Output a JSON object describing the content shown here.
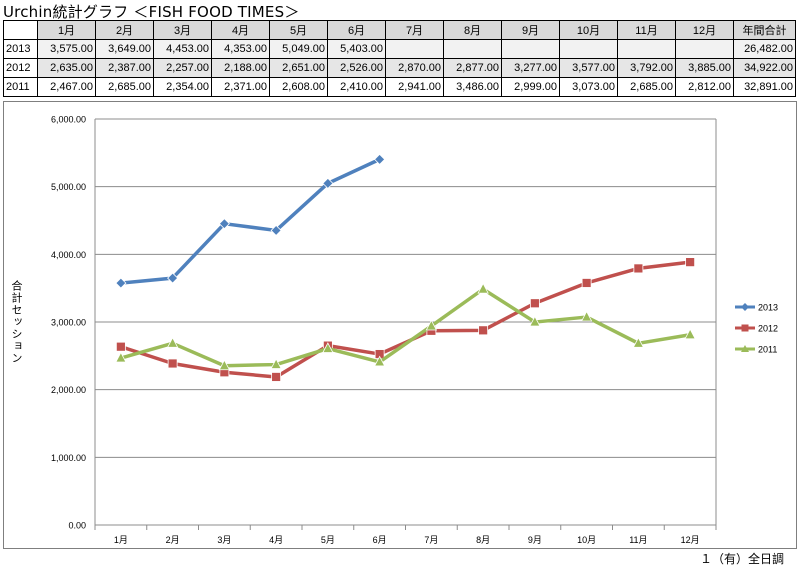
{
  "title": "Urchin統計グラフ ＜FISH FOOD TIMES＞",
  "table": {
    "corner": "",
    "months": [
      "1月",
      "2月",
      "3月",
      "4月",
      "5月",
      "6月",
      "7月",
      "8月",
      "9月",
      "10月",
      "11月",
      "12月"
    ],
    "total_label": "年間合計",
    "rows": [
      {
        "year": "2013",
        "values": [
          "3,575.00",
          "3,649.00",
          "4,453.00",
          "4,353.00",
          "5,049.00",
          "5,403.00",
          "",
          "",
          "",
          "",
          "",
          ""
        ],
        "total": "26,482.00"
      },
      {
        "year": "2012",
        "values": [
          "2,635.00",
          "2,387.00",
          "2,257.00",
          "2,188.00",
          "2,651.00",
          "2,526.00",
          "2,870.00",
          "2,877.00",
          "3,277.00",
          "3,577.00",
          "3,792.00",
          "3,885.00"
        ],
        "total": "34,922.00"
      },
      {
        "year": "2011",
        "values": [
          "2,467.00",
          "2,685.00",
          "2,354.00",
          "2,371.00",
          "2,608.00",
          "2,410.00",
          "2,941.00",
          "3,486.00",
          "2,999.00",
          "3,073.00",
          "2,685.00",
          "2,812.00"
        ],
        "total": "32,891.00"
      }
    ]
  },
  "chart_data": {
    "type": "line",
    "categories": [
      "1月",
      "2月",
      "3月",
      "4月",
      "5月",
      "6月",
      "7月",
      "8月",
      "9月",
      "10月",
      "11月",
      "12月"
    ],
    "ylabel": "合計セッション",
    "ylim": [
      0,
      6000
    ],
    "yticks": [
      0,
      1000,
      2000,
      3000,
      4000,
      5000,
      6000
    ],
    "ytick_labels": [
      "0.00",
      "1,000.00",
      "2,000.00",
      "3,000.00",
      "4,000.00",
      "5,000.00",
      "6,000.00"
    ],
    "grid": true,
    "legend_position": "right",
    "series": [
      {
        "name": "2013",
        "color": "#4f81bd",
        "marker": "diamond",
        "values": [
          3575,
          3649,
          4453,
          4353,
          5049,
          5403,
          null,
          null,
          null,
          null,
          null,
          null
        ]
      },
      {
        "name": "2012",
        "color": "#c0504d",
        "marker": "square",
        "values": [
          2635,
          2387,
          2257,
          2188,
          2651,
          2526,
          2870,
          2877,
          3277,
          3577,
          3792,
          3885
        ]
      },
      {
        "name": "2011",
        "color": "#9bbb59",
        "marker": "triangle",
        "values": [
          2467,
          2685,
          2354,
          2371,
          2608,
          2410,
          2941,
          3486,
          2999,
          3073,
          2685,
          2812
        ]
      }
    ]
  },
  "footer": "１（有）全日調"
}
